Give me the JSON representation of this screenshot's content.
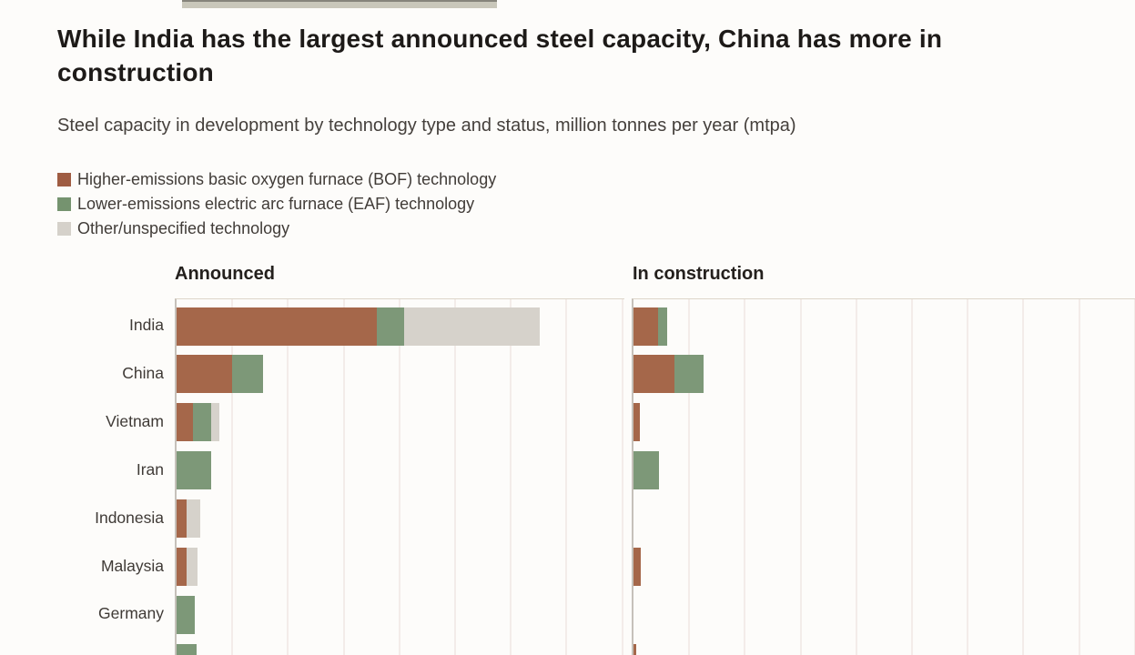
{
  "chart_data": {
    "type": "bar",
    "orientation": "horizontal",
    "title": "While India has the largest announced steel capacity, China has more in construction",
    "subtitle": "Steel capacity in development by technology type and status, million tonnes per year (mtpa)",
    "unit": "mtpa",
    "grid": true,
    "tick_labels_visible": false,
    "gridline_interval": 25,
    "axis": {
      "x_min": 0,
      "x_max_left_panel": 200,
      "x_max_right_panel": 225
    },
    "legend": [
      {
        "key": "bof",
        "label": "Higher-emissions basic oxygen furnace (BOF) technology",
        "color": "#9f5c42"
      },
      {
        "key": "eaf",
        "label": "Lower-emissions electric arc furnace (EAF) technology",
        "color": "#75936f"
      },
      {
        "key": "other",
        "label": "Other/unspecified technology",
        "color": "#d5d1ca"
      }
    ],
    "bar_colors": {
      "bof": "#a5674a",
      "eaf": "#7d9878",
      "other": "#d6d2cb"
    },
    "categories": [
      "India",
      "China",
      "Vietnam",
      "Iran",
      "Indonesia",
      "Malaysia",
      "Germany",
      ""
    ],
    "panels": [
      {
        "label": "Announced",
        "series": [
          {
            "key": "bof",
            "name": "Higher-emissions basic oxygen furnace (BOF) technology",
            "values": [
              90,
              25,
              7.5,
              0,
              4.5,
              4.5,
              0,
              0
            ]
          },
          {
            "key": "eaf",
            "name": "Lower-emissions electric arc furnace (EAF) technology",
            "values": [
              12,
              14,
              8,
              15.5,
              0,
              0,
              8,
              9
            ]
          },
          {
            "key": "other",
            "name": "Other/unspecified technology",
            "values": [
              61,
              0,
              3.5,
              0,
              6,
              5,
              0,
              0
            ]
          }
        ]
      },
      {
        "label": "In construction",
        "series": [
          {
            "key": "bof",
            "name": "Higher-emissions basic oxygen furnace (BOF) technology",
            "values": [
              11,
              18.5,
              3,
              0,
              0,
              3.3,
              0,
              1.2
            ]
          },
          {
            "key": "eaf",
            "name": "Lower-emissions electric arc furnace (EAF) technology",
            "values": [
              4,
              13,
              0,
              11.5,
              0,
              0,
              0,
              0
            ]
          },
          {
            "key": "other",
            "name": "Other/unspecified technology",
            "values": [
              0,
              0,
              0,
              0,
              0,
              0,
              0,
              0
            ]
          }
        ]
      }
    ]
  }
}
